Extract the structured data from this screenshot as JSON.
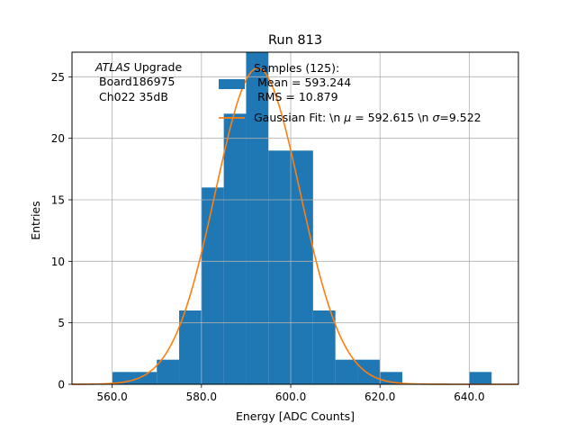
{
  "chart_data": {
    "type": "bar",
    "title": "Run 813",
    "xlabel": "Energy [ADC Counts]",
    "ylabel": "Entries",
    "xlim": [
      551,
      651
    ],
    "ylim": [
      0,
      27
    ],
    "grid": true,
    "bin_width": 5,
    "x_ticks": [
      560,
      580,
      600,
      620,
      640
    ],
    "x_tick_labels": [
      "560.0",
      "580.0",
      "600.0",
      "620.0",
      "640.0"
    ],
    "y_ticks": [
      0,
      5,
      10,
      15,
      20,
      25
    ],
    "y_tick_labels": [
      "0",
      "5",
      "10",
      "15",
      "20",
      "25"
    ],
    "bins": [
      {
        "start": 560,
        "count": 1
      },
      {
        "start": 565,
        "count": 1
      },
      {
        "start": 570,
        "count": 2
      },
      {
        "start": 575,
        "count": 6
      },
      {
        "start": 580,
        "count": 16
      },
      {
        "start": 585,
        "count": 22
      },
      {
        "start": 590,
        "count": 27
      },
      {
        "start": 595,
        "count": 19
      },
      {
        "start": 600,
        "count": 19
      },
      {
        "start": 605,
        "count": 6
      },
      {
        "start": 610,
        "count": 2
      },
      {
        "start": 615,
        "count": 2
      },
      {
        "start": 620,
        "count": 1
      },
      {
        "start": 625,
        "count": 0
      },
      {
        "start": 630,
        "count": 0
      },
      {
        "start": 635,
        "count": 0
      },
      {
        "start": 640,
        "count": 1
      }
    ],
    "fit": {
      "mu": 592.615,
      "sigma": 9.522,
      "amplitude": 25.7
    },
    "annotation": {
      "atlas": "ATLAS",
      "upgrade": " Upgrade",
      "board": "Board186975",
      "channel": "Ch022 35dB"
    },
    "legend": {
      "position": "top-right",
      "samples_line1": "Samples (125):",
      "samples_line2": "Mean = 593.244",
      "samples_line3": "RMS = 10.879",
      "fit_prefix": "Gaussian Fit: \\n ",
      "mu_symbol": "μ",
      "fit_middle": " = 592.615 \\n ",
      "sigma_symbol": "σ",
      "fit_suffix": "=9.522"
    },
    "colors": {
      "histogram": "#1f77b4",
      "fit": "#ff7f0e",
      "grid": "#b0b0b0",
      "axes": "#000000"
    }
  }
}
